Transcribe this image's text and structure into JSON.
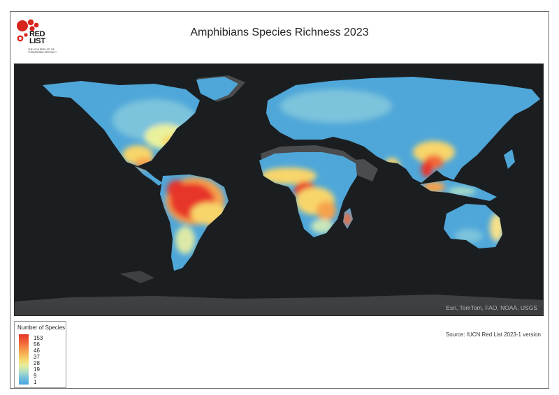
{
  "title": "Amphibians Species Richness 2023",
  "logo": {
    "text_line1": "RED",
    "text_line2": "LIST",
    "tagline": "THE IUCN RED LIST OF THREATENED SPECIES™"
  },
  "map": {
    "attribution": "Esri, TomTom, FAO, NOAA, USGS",
    "ocean_color": "#1b1e20",
    "land_nodata_color": "#4a4c4e"
  },
  "legend": {
    "title": "Number of Species",
    "labels": [
      "153",
      "56",
      "46",
      "37",
      "28",
      "19",
      "9",
      "1"
    ],
    "colors": [
      "#e8352a",
      "#f6a24e",
      "#f8d56b",
      "#6fbde0",
      "#49a6dc"
    ]
  },
  "source": "Source: IUCN Red List 2023-1 version"
}
